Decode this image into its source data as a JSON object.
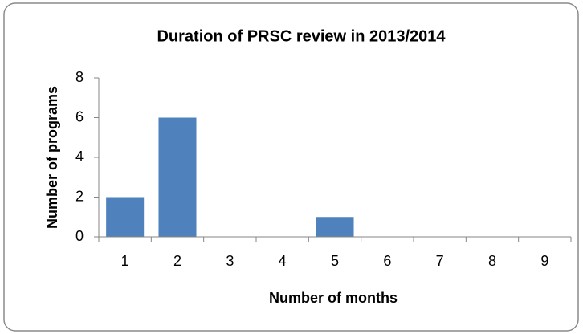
{
  "chart_data": {
    "type": "bar",
    "title": "Duration of PRSC review in 2013/2014",
    "xlabel": "Number of months",
    "ylabel": "Number of programs",
    "categories": [
      "1",
      "2",
      "3",
      "4",
      "5",
      "6",
      "7",
      "8",
      "9"
    ],
    "values": [
      2,
      6,
      0,
      0,
      1,
      0,
      0,
      0,
      0
    ],
    "color": "#4f81bd",
    "ylim": [
      0,
      8
    ],
    "yticks": [
      0,
      2,
      4,
      6,
      8
    ],
    "grid": false
  }
}
